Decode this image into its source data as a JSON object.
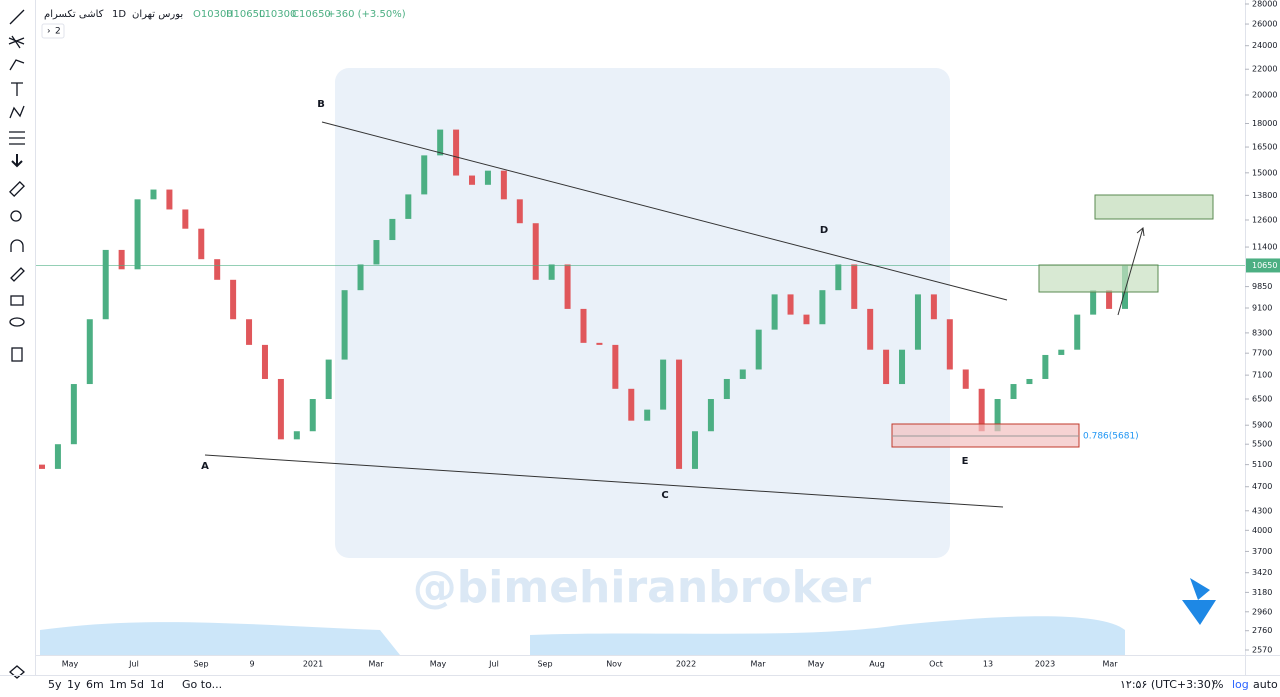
{
  "header": {
    "symbol": "کاشی تکسرام",
    "interval": "1D",
    "exchange": "بورس تهران",
    "ohlc": [
      "O10300",
      "H10650",
      "L10300",
      "C10650",
      "+360 (+3.50%)"
    ],
    "indicator_count": "2"
  },
  "chart_data": {
    "type": "candlestick",
    "open": [
      5100,
      5020,
      5500,
      6870,
      8730,
      11280,
      10500,
      13600,
      14100,
      13100,
      12200,
      10900,
      10100,
      8730,
      7940,
      7000,
      5600,
      5770,
      6500,
      7520,
      9720,
      10690,
      11700,
      12650,
      13850,
      16000,
      17600,
      14850,
      14350,
      15120,
      13600,
      12450,
      10100,
      10690,
      9070,
      8000,
      7940,
      6750,
      6000,
      6250,
      7520,
      5020,
      5770,
      6500,
      7000,
      7250,
      8400,
      9570,
      8880,
      8570,
      9720,
      10690,
      9070,
      7800,
      6870,
      7800,
      9570,
      8730,
      7250,
      6750,
      5770,
      6500,
      6870,
      7000,
      7650,
      7800,
      8880,
      9720,
      9070
    ],
    "close": [
      5020,
      5500,
      6870,
      8730,
      11280,
      10500,
      13600,
      14100,
      13100,
      12200,
      10900,
      10100,
      8730,
      7940,
      7000,
      5600,
      5770,
      6500,
      7520,
      9720,
      10690,
      11700,
      12650,
      13850,
      16000,
      17600,
      14850,
      14350,
      15120,
      13600,
      12450,
      10100,
      10690,
      9070,
      8000,
      7940,
      6750,
      6000,
      6250,
      7520,
      5020,
      5770,
      6500,
      7000,
      7250,
      8400,
      9570,
      8880,
      8570,
      9720,
      10690,
      9070,
      7800,
      6870,
      7800,
      9570,
      8730,
      7250,
      6750,
      5770,
      6500,
      6870,
      7000,
      7650,
      7800,
      8880,
      9720,
      9070,
      10650
    ],
    "up_color": "#4caf83",
    "down_color": "#e0575b",
    "log_scale": true,
    "ylim": [
      2570,
      28000
    ],
    "yticks": [
      28000,
      26000,
      24000,
      22000,
      20000,
      18000,
      16500,
      15000,
      13800,
      12600,
      11400,
      9850,
      9100,
      8300,
      7700,
      7100,
      6500,
      5900,
      5500,
      5100,
      4700,
      4300,
      4000,
      3700,
      3420,
      3180,
      2960,
      2760,
      2570
    ],
    "last_price": 10650,
    "x_labels": [
      "May",
      "Jul",
      "Sep",
      "9",
      "2021",
      "Mar",
      "May",
      "Jul",
      "Sep",
      "Nov",
      "2022",
      "Mar",
      "May",
      "Aug",
      "Oct",
      "13",
      "2023",
      "Mar"
    ],
    "annotations": [
      "A",
      "B",
      "C",
      "D",
      "E",
      "0.786(5681)"
    ],
    "watermark": "@bimehiranbroker"
  },
  "footer": {
    "ranges": [
      "5y",
      "1y",
      "6m",
      "1m",
      "5d",
      "1d"
    ],
    "goto": "Go to...",
    "clock": "۱۲:۵۶ (UTC+3:30)",
    "percent": "%",
    "log": "log",
    "auto": "auto"
  }
}
